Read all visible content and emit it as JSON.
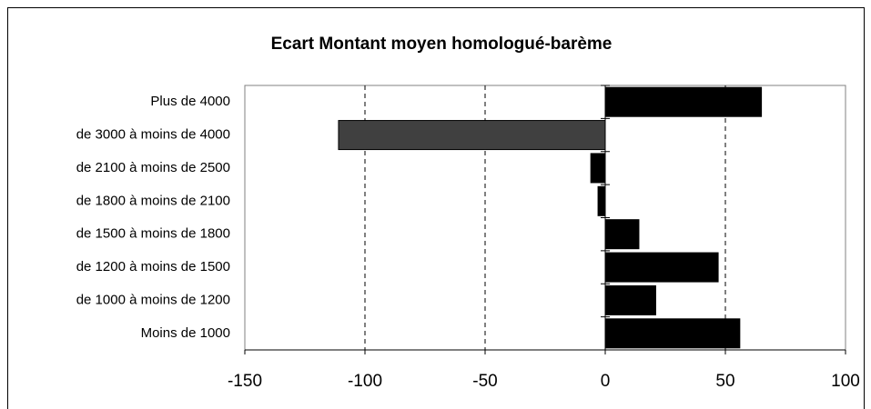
{
  "chart_data": {
    "type": "bar",
    "orientation": "horizontal",
    "title": "Ecart Montant moyen homologué-barème",
    "categories": [
      "Plus de 4000",
      "de 3000 à moins de 4000",
      "de 2100 à moins de 2500",
      "de 1800 à moins de 2100",
      "de 1500 à moins de 1800",
      "de 1200 à moins de 1500",
      "de 1000 à moins de 1200",
      "Moins de 1000"
    ],
    "values": [
      65,
      -111,
      -6,
      -3,
      14,
      47,
      21,
      56
    ],
    "colors": [
      "#000000",
      "#404040",
      "#000000",
      "#000000",
      "#000000",
      "#000000",
      "#000000",
      "#000000"
    ],
    "xlim": [
      -150,
      100
    ],
    "xticks": [
      -150,
      -100,
      -50,
      0,
      50,
      100
    ],
    "grid": true
  }
}
